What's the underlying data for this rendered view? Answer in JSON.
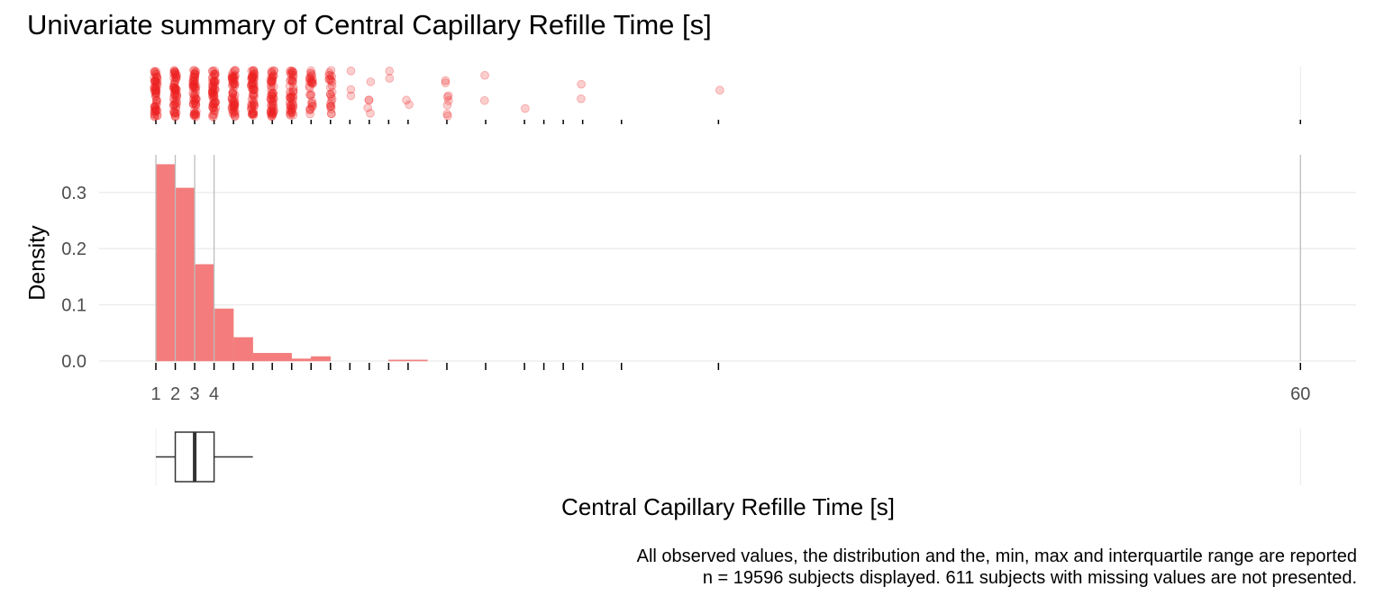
{
  "title": "Univariate summary of Central Capillary Refille Time [s]",
  "caption": {
    "line1": "All observed values, the distribution and the, min, max and interquartile range are reported",
    "line2": "n = 19596 subjects displayed. 611 subjects with missing values are not presented."
  },
  "colors": {
    "points": "#ee2222",
    "bars": "#f47c7c",
    "grid": "#ebebeb",
    "vline": "#bdbdbd",
    "box": "#333333"
  },
  "chart_data": {
    "type": "histogram",
    "title": "Univariate summary of Central Capillary Refille Time [s]",
    "xlabel": "Central Capillary Refille Time [s]",
    "ylabel": "Density",
    "xlim": [
      1,
      60
    ],
    "ylim": [
      0,
      0.35
    ],
    "x_tick_labels": [
      "1",
      "2",
      "3",
      "4",
      "60"
    ],
    "x_tick_values": [
      1,
      2,
      3,
      4,
      60
    ],
    "y_ticks": [
      0.0,
      0.1,
      0.2,
      0.3
    ],
    "y_tick_labels": [
      "0.0",
      "0.1",
      "0.2",
      "0.3"
    ],
    "rug_tick_values": [
      1,
      2,
      3,
      4,
      5,
      6,
      7,
      8,
      9,
      10,
      11,
      12,
      13,
      14,
      16,
      18,
      20,
      21,
      22,
      23,
      25,
      30,
      60
    ],
    "bins": [
      {
        "start": 1,
        "end": 2,
        "density": 0.35
      },
      {
        "start": 2,
        "end": 3,
        "density": 0.308
      },
      {
        "start": 3,
        "end": 4,
        "density": 0.172
      },
      {
        "start": 4,
        "end": 5,
        "density": 0.093
      },
      {
        "start": 5,
        "end": 6,
        "density": 0.042
      },
      {
        "start": 6,
        "end": 8,
        "density": 0.014
      },
      {
        "start": 8,
        "end": 9,
        "density": 0.004
      },
      {
        "start": 9,
        "end": 10,
        "density": 0.008
      },
      {
        "start": 13,
        "end": 15,
        "density": 0.002
      }
    ],
    "reference_lines": [
      1,
      2,
      3,
      4,
      60
    ],
    "strip_points": [
      {
        "x": 1,
        "count": 60
      },
      {
        "x": 2,
        "count": 60
      },
      {
        "x": 3,
        "count": 60
      },
      {
        "x": 4,
        "count": 60
      },
      {
        "x": 5,
        "count": 60
      },
      {
        "x": 6,
        "count": 60
      },
      {
        "x": 7,
        "count": 55
      },
      {
        "x": 8,
        "count": 50
      },
      {
        "x": 9,
        "count": 30
      },
      {
        "x": 10,
        "count": 25
      },
      {
        "x": 11,
        "count": 3
      },
      {
        "x": 12,
        "count": 5
      },
      {
        "x": 13,
        "count": 2
      },
      {
        "x": 14,
        "count": 2
      },
      {
        "x": 16,
        "count": 8
      },
      {
        "x": 18,
        "count": 2
      },
      {
        "x": 20,
        "count": 1
      },
      {
        "x": 23,
        "count": 2
      },
      {
        "x": 30,
        "count": 1
      }
    ],
    "boxplot": {
      "min": 1,
      "q1": 2,
      "median": 3,
      "q3": 4,
      "whisker_high": 6,
      "max": 60
    }
  }
}
